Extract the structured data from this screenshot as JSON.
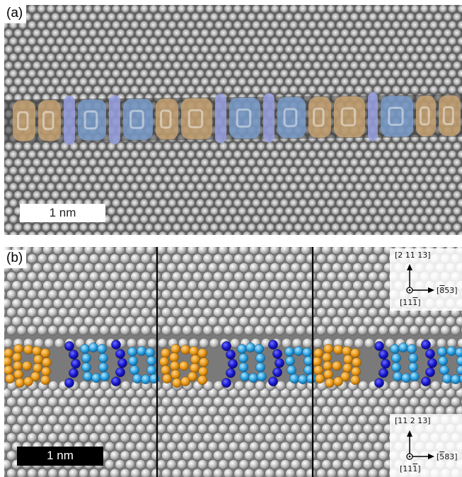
{
  "panel_a": {
    "label": "(a)",
    "scale_bar": "1 nm"
  },
  "panel_b": {
    "label": "(b)",
    "scale_bar": "1 nm",
    "orientation_top": {
      "up": "[2 11 13]",
      "right_parts": [
        "[",
        "8",
        "53]"
      ],
      "out_parts": [
        "[11",
        "1",
        "]"
      ]
    },
    "orientation_bottom": {
      "up": "[11 2 13]",
      "right_parts": [
        "[",
        "5",
        "83]"
      ],
      "out_parts": [
        "[11",
        "1",
        "]"
      ]
    }
  },
  "colors": {
    "orange": "#e89a1a",
    "dark_blue": "#1a1ad0",
    "light_blue": "#2fa3e0",
    "tint_orange": "#c9a371",
    "tint_blue": "#7a9fcf"
  }
}
